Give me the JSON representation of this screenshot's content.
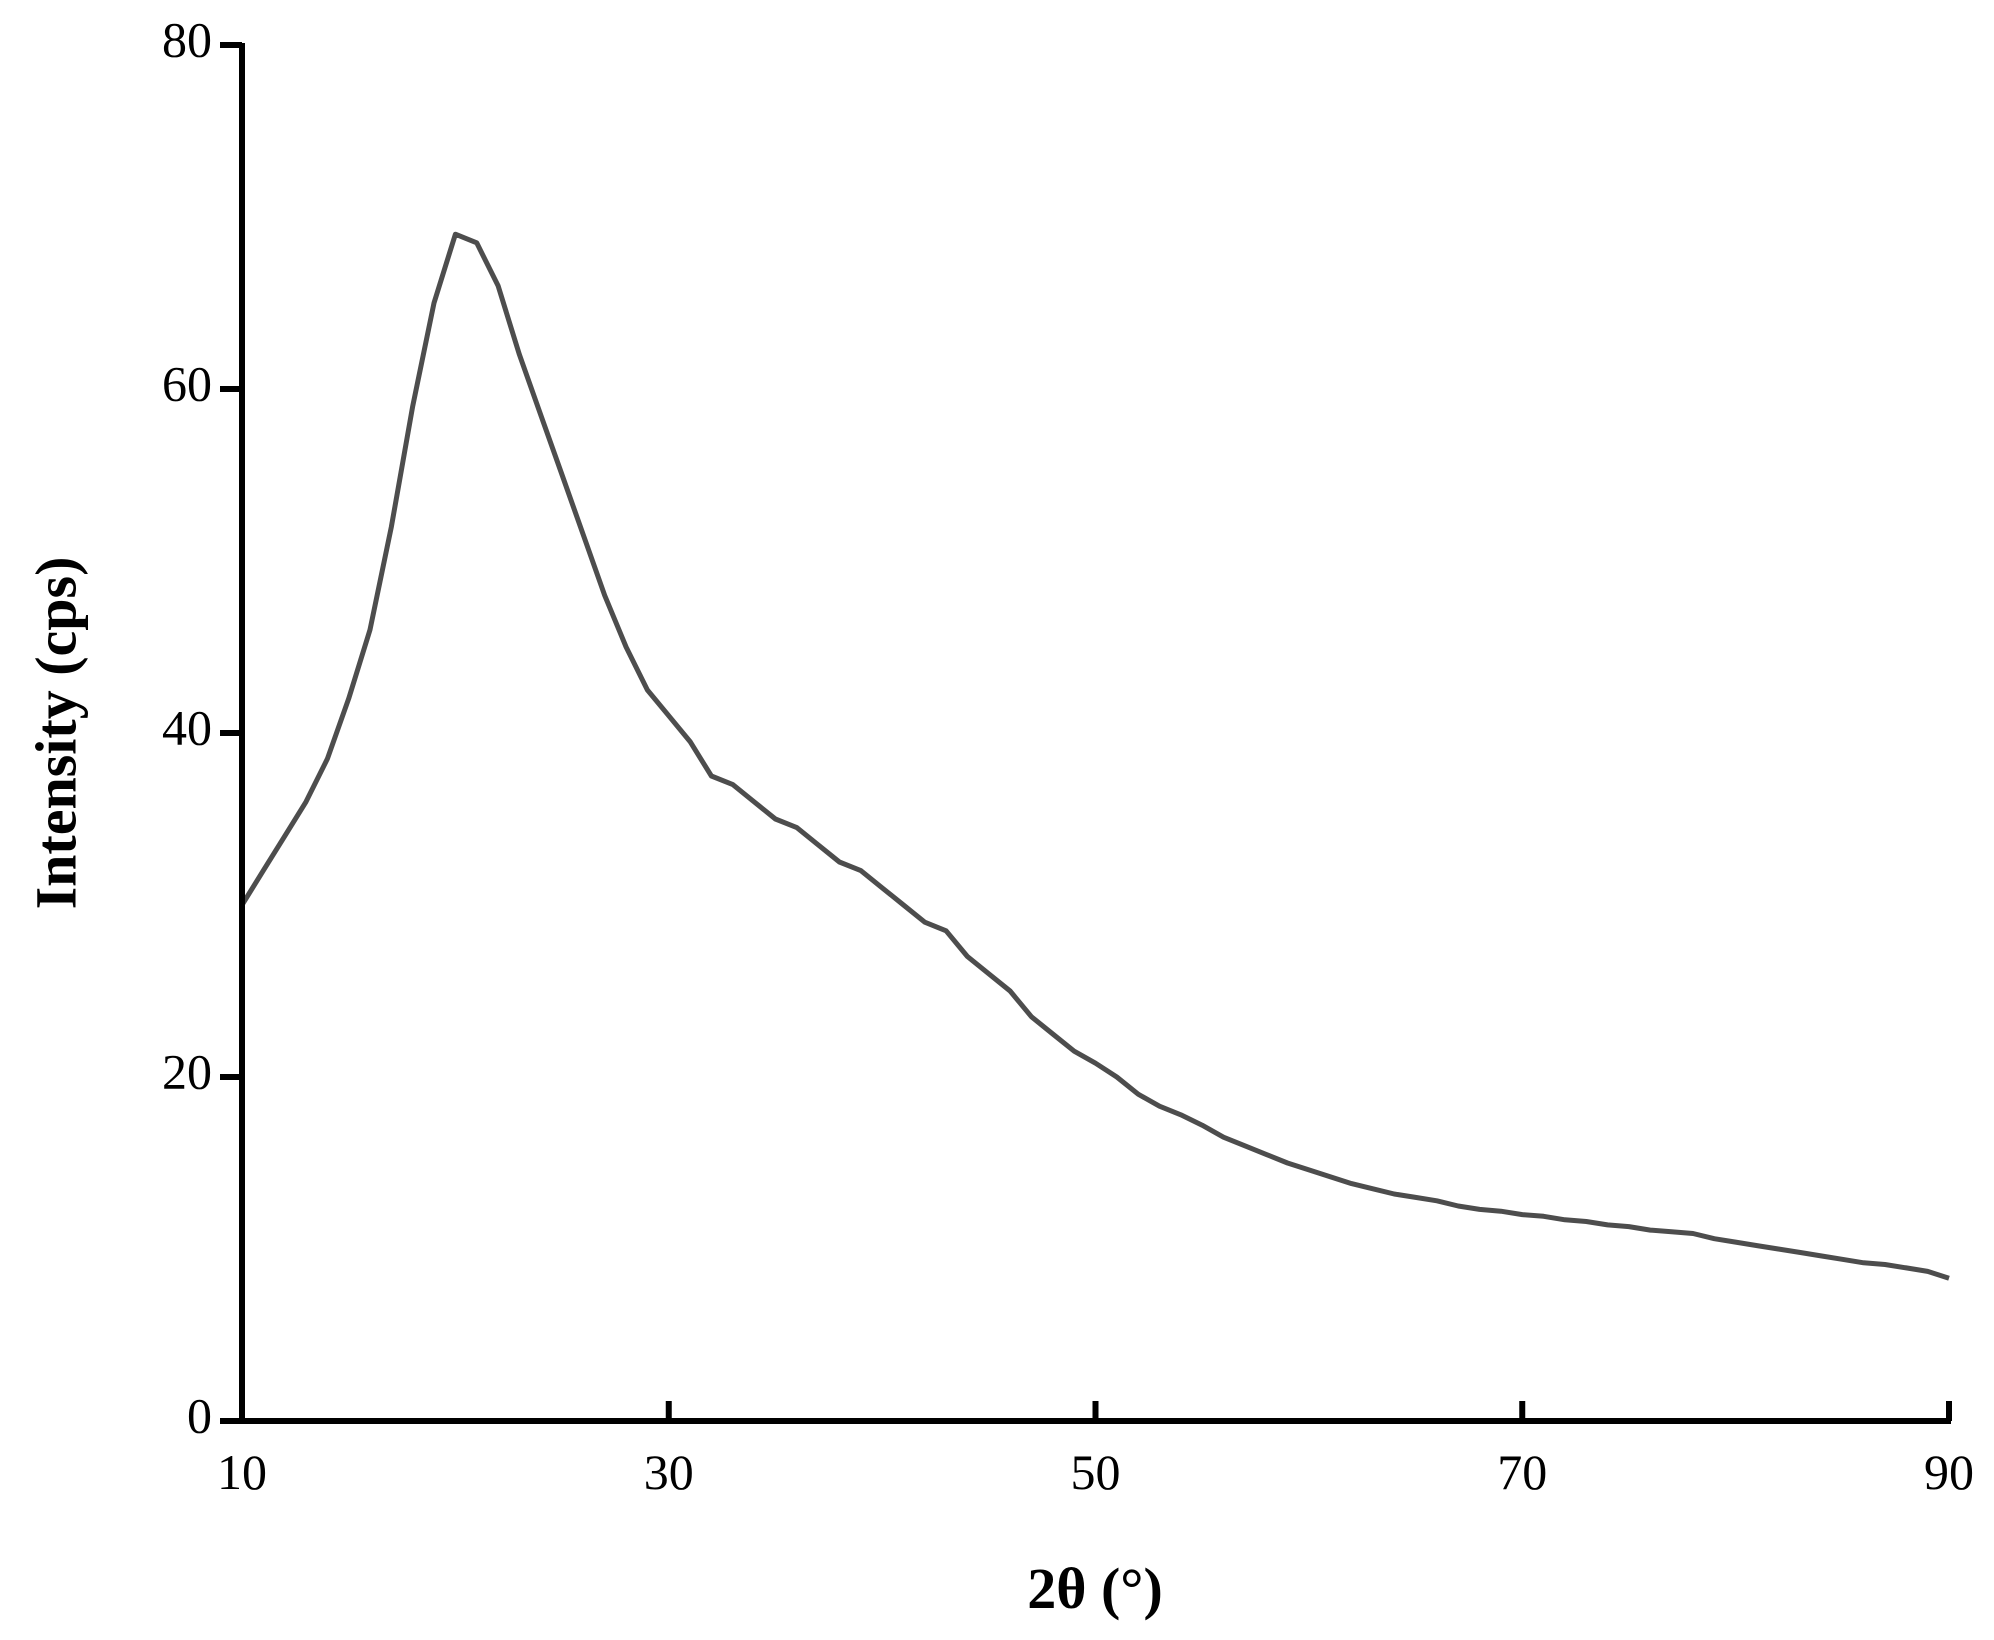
{
  "chart_data": {
    "type": "line",
    "x_label": "2θ (°)",
    "y_label": "Intensity (cps)",
    "x": [
      10,
      11,
      12,
      13,
      14,
      15,
      16,
      17,
      18,
      19,
      20,
      21,
      22,
      23,
      24,
      25,
      26,
      27,
      28,
      29,
      30,
      31,
      32,
      33,
      34,
      35,
      36,
      37,
      38,
      39,
      40,
      41,
      42,
      43,
      44,
      45,
      46,
      47,
      48,
      49,
      50,
      51,
      52,
      53,
      54,
      55,
      56,
      57,
      58,
      59,
      60,
      61,
      62,
      63,
      64,
      65,
      66,
      67,
      68,
      69,
      70,
      71,
      72,
      73,
      74,
      75,
      76,
      77,
      78,
      79,
      80,
      81,
      82,
      83,
      84,
      85,
      86,
      87,
      88,
      89,
      90
    ],
    "values": [
      30,
      32,
      34,
      36,
      38.5,
      42,
      46,
      52,
      59,
      65,
      69,
      68.5,
      66,
      62,
      58.5,
      55,
      51.5,
      48,
      45,
      42.5,
      41,
      39.5,
      37.5,
      37,
      36,
      35,
      34.5,
      33.5,
      32.5,
      32,
      31,
      30,
      29,
      28.5,
      27,
      26,
      25,
      23.5,
      22.5,
      21.5,
      20.8,
      20,
      19,
      18.3,
      17.8,
      17.2,
      16.5,
      16,
      15.5,
      15,
      14.6,
      14.2,
      13.8,
      13.5,
      13.2,
      13,
      12.8,
      12.5,
      12.3,
      12.2,
      12,
      11.9,
      11.7,
      11.6,
      11.4,
      11.3,
      11.1,
      11,
      10.9,
      10.6,
      10.4,
      10.2,
      10,
      9.8,
      9.6,
      9.4,
      9.2,
      9.1,
      8.9,
      8.7,
      8.3
    ],
    "color": "#4d4d4d",
    "xlim": [
      10,
      90
    ],
    "xticks": [
      10,
      30,
      50,
      70,
      90
    ],
    "ylim": [
      0,
      80
    ],
    "yticks": [
      0,
      20,
      40,
      60,
      80
    ]
  }
}
